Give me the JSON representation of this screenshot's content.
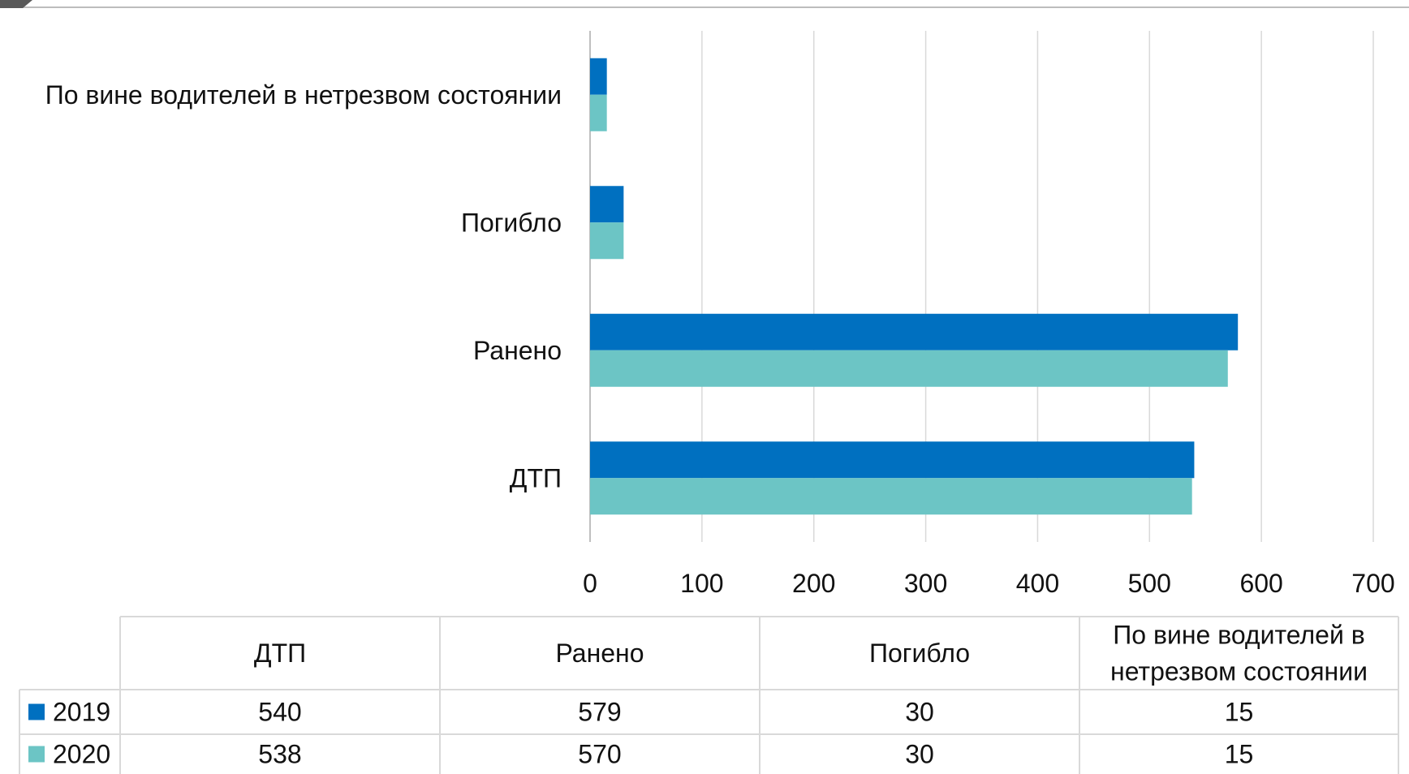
{
  "chart_data": {
    "type": "bar",
    "orientation": "horizontal",
    "categories": [
      "ДТП",
      "Ранено",
      "Погибло",
      "По вине водителей в нетрезвом состоянии"
    ],
    "table_headers": [
      "ДТП",
      "Ранено",
      "Погибло",
      "По вине водителей в нетрезвом состоянии"
    ],
    "series": [
      {
        "name": "2019",
        "values": [
          540,
          579,
          30,
          15
        ],
        "color": "#0070C0"
      },
      {
        "name": "2020",
        "values": [
          538,
          570,
          30,
          15
        ],
        "color": "#6CC5C5"
      }
    ],
    "xlim": [
      0,
      700
    ],
    "ticks": [
      0,
      100,
      200,
      300,
      400,
      500,
      600,
      700
    ],
    "grid": true,
    "legend": "data-table-below",
    "title": "",
    "xlabel": "",
    "ylabel": ""
  }
}
